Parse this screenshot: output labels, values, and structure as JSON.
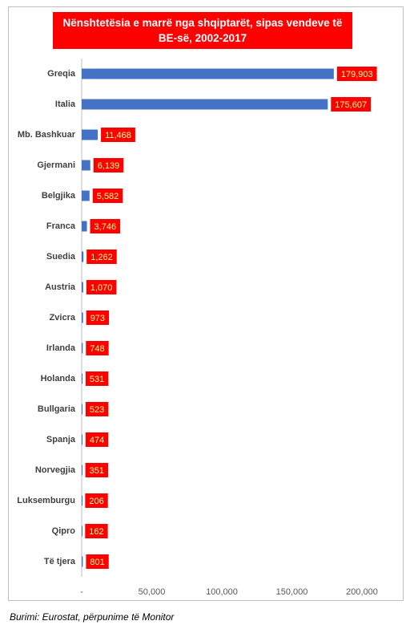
{
  "chart_data": {
    "type": "bar",
    "orientation": "horizontal",
    "title": "Nënshtetësia e marrë nga shqiptarët, sipas vendeve të BE-së, 2002-2017",
    "categories": [
      "Greqia",
      "Italia",
      "Mb. Bashkuar",
      "Gjermani",
      "Belgjika",
      "Franca",
      "Suedia",
      "Austria",
      "Zvicra",
      "Irlanda",
      "Holanda",
      "Bullgaria",
      "Spanja",
      "Norvegjia",
      "Luksemburgu",
      "Qipro",
      "Të tjera"
    ],
    "values": [
      179903,
      175607,
      11468,
      6139,
      5582,
      3746,
      1262,
      1070,
      973,
      748,
      531,
      523,
      474,
      351,
      206,
      162,
      801
    ],
    "value_labels": [
      "179,903",
      "175,607",
      "11,468",
      "6,139",
      "5,582",
      "3,746",
      "1,262",
      "1,070",
      "973",
      "748",
      "531",
      "523",
      "474",
      "351",
      "206",
      "162",
      "801"
    ],
    "color": "#4472c4",
    "xlim": [
      0,
      200000
    ],
    "xticks": [
      {
        "value": 0,
        "label": "-"
      },
      {
        "value": 50000,
        "label": "50,000"
      },
      {
        "value": 100000,
        "label": "100,000"
      },
      {
        "value": 150000,
        "label": "150,000"
      },
      {
        "value": 200000,
        "label": "200,000"
      }
    ],
    "grid": false,
    "caption": "Burimi: Eurostat, përpunime të Monitor"
  }
}
